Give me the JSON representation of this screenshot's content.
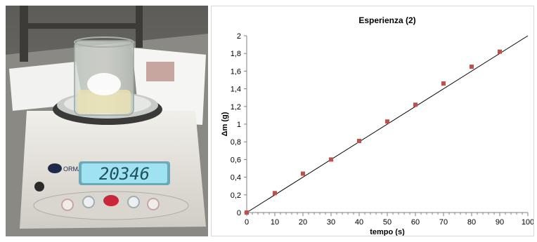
{
  "photo": {
    "brand_text": "ORMA",
    "display_value": "20346",
    "colors": {
      "lcd": "#9fe3f3",
      "scale_body": "#e8e6df",
      "background_wall": "#6a6a66"
    }
  },
  "chart_data": {
    "type": "scatter",
    "title": "Esperienza (2)",
    "xlabel": "tempo (s)",
    "ylabel": "Δm (g)",
    "xlim": [
      0,
      100
    ],
    "ylim": [
      0,
      2
    ],
    "x_ticks": [
      "0",
      "10",
      "20",
      "30",
      "40",
      "50",
      "60",
      "70",
      "80",
      "90",
      "100"
    ],
    "y_ticks": [
      "0",
      "0,2",
      "0,4",
      "0,6",
      "0,8",
      "1",
      "1,2",
      "1,4",
      "1,6",
      "1,8",
      "2"
    ],
    "series": [
      {
        "x": [
          0,
          10,
          20,
          30,
          40,
          50,
          60,
          70,
          80,
          90
        ],
        "y": [
          0,
          0.22,
          0.44,
          0.6,
          0.81,
          1.03,
          1.22,
          1.46,
          1.65,
          1.82
        ],
        "color": "#c0504d"
      }
    ],
    "trendline": {
      "x": [
        0,
        100
      ],
      "y": [
        0,
        2
      ],
      "color": "#000000"
    },
    "grid": false,
    "legend": false
  }
}
